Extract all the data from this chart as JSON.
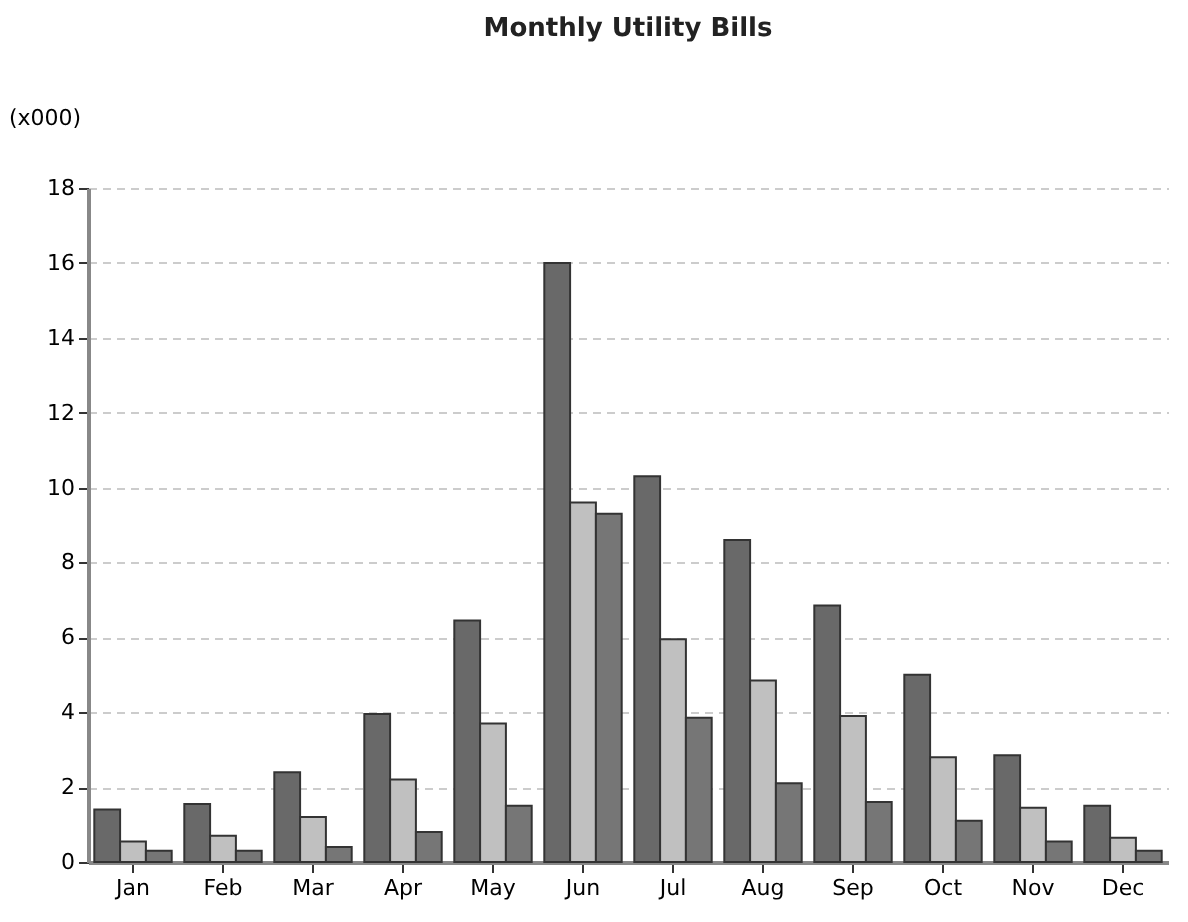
{
  "chart_data": {
    "type": "bar",
    "title": "Monthly Utility Bills",
    "ylabel": "(x000)",
    "categories": [
      "Jan",
      "Feb",
      "Mar",
      "Apr",
      "May",
      "Jun",
      "Jul",
      "Aug",
      "Sep",
      "Oct",
      "Nov",
      "Dec"
    ],
    "series": [
      {
        "color": "#696969",
        "values": [
          1.4,
          1.55,
          2.4,
          3.95,
          6.45,
          16,
          10.3,
          8.6,
          6.85,
          5.0,
          2.85,
          1.5
        ]
      },
      {
        "color": "#c0c0c0",
        "values": [
          0.55,
          0.7,
          1.2,
          2.2,
          3.7,
          9.6,
          5.95,
          4.85,
          3.9,
          2.8,
          1.45,
          0.65
        ]
      },
      {
        "color": "#767676",
        "values": [
          0.3,
          0.3,
          0.4,
          0.8,
          1.5,
          9.3,
          3.85,
          2.1,
          1.6,
          1.1,
          0.55,
          0.3
        ]
      }
    ],
    "ylim": [
      0,
      18
    ],
    "yticks": [
      0,
      2,
      4,
      6,
      8,
      10,
      12,
      14,
      16,
      18
    ],
    "grid": "y"
  }
}
